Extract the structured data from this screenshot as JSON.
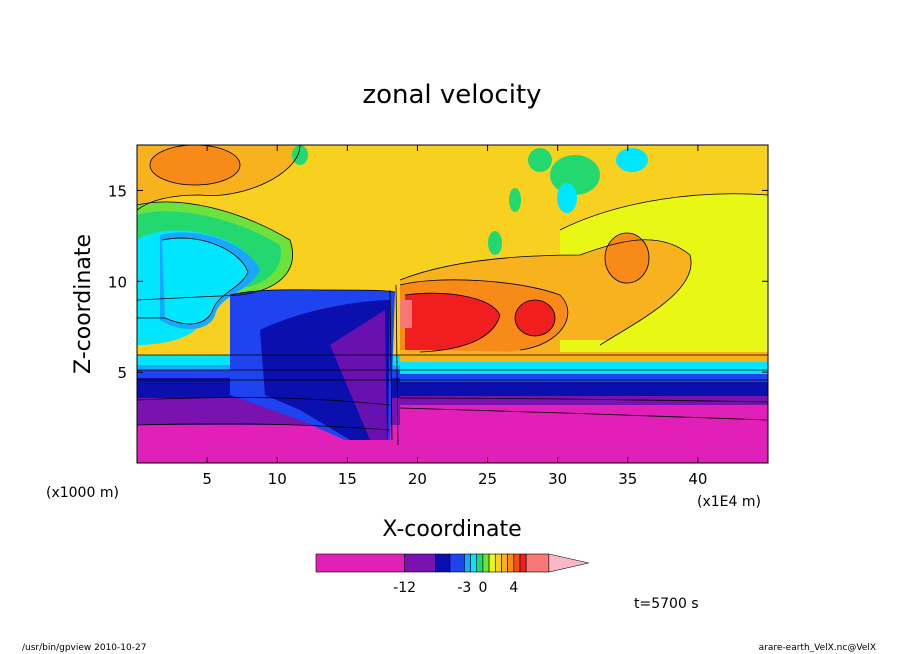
{
  "chart_data": {
    "type": "heatmap",
    "title": "zonal velocity",
    "xlabel": "X-coordinate",
    "ylabel": "Z-coordinate",
    "x_unit_left": "(x1000 m)",
    "x_unit_right": "(x1E4 m)",
    "x_ticks": [
      "5",
      "10",
      "15",
      "20",
      "25",
      "30",
      "35",
      "40"
    ],
    "x_tick_values": [
      5,
      10,
      15,
      20,
      25,
      30,
      35,
      40
    ],
    "y_ticks": [
      "5",
      "10",
      "15"
    ],
    "y_tick_values": [
      5,
      10,
      15
    ],
    "xlim": [
      0,
      45
    ],
    "ylim": [
      0,
      17.5
    ],
    "colorbar": {
      "colors": [
        "#e020b8",
        "#7a12b0",
        "#0a0fae",
        "#1e44f0",
        "#19a8ff",
        "#00e6ff",
        "#24d870",
        "#6ee23c",
        "#e8f814",
        "#f8d020",
        "#f8b21e",
        "#f88a18",
        "#f05010",
        "#f01e1e",
        "#f87878",
        "#f8b8c8"
      ],
      "tick_labels": [
        "-12",
        "-3",
        "0",
        "4"
      ],
      "extend": "max"
    },
    "time_label": "t=5700 s",
    "footer_left": "/usr/bin/gpview   2010-10-27",
    "footer_right": "arare-earth_VelX.nc@VelX"
  }
}
